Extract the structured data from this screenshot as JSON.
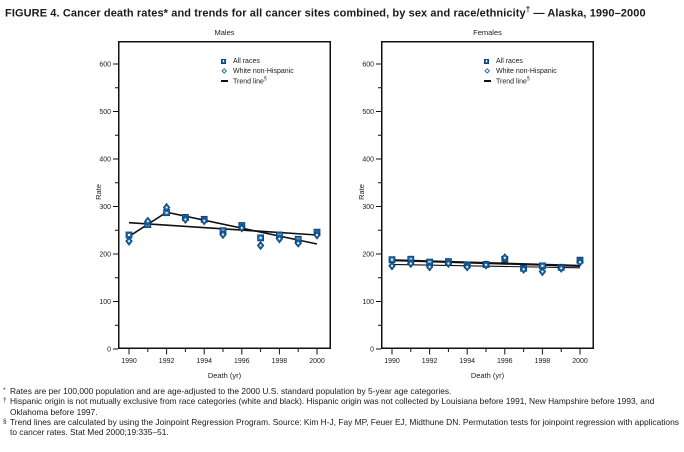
{
  "figure": {
    "title_main": "FIGURE 4. Cancer death rates* and trends for all cancer sites combined, by sex and race/ethnicity",
    "title_sup": "†",
    "title_tail": " — Alaska, 1990–2000"
  },
  "colors": {
    "marker_blue": "#1E6FB0",
    "marker_edge": "#0C3C6E",
    "line_black": "#111111"
  },
  "chart_data": [
    {
      "type": "scatter",
      "title": "Males",
      "xlabel": "Death (yr)",
      "ylabel": "Rate",
      "x": [
        1990,
        1991,
        1992,
        1993,
        1994,
        1995,
        1996,
        1997,
        1998,
        1999,
        2000
      ],
      "ylim": [
        0,
        650
      ],
      "ytick_major_step": 100,
      "ytick_minor_step": 50,
      "xticks_labeled": [
        1990,
        1992,
        1994,
        1996,
        1998,
        2000
      ],
      "grid": false,
      "legend_position": "upper-center",
      "series": [
        {
          "name": "All races",
          "marker": "square",
          "values": [
            240,
            262,
            287,
            277,
            273,
            249,
            260,
            234,
            240,
            231,
            246
          ]
        },
        {
          "name": "White non-Hispanic",
          "marker": "diamond",
          "values": [
            227,
            269,
            298,
            273,
            270,
            241,
            255,
            218,
            232,
            223,
            240
          ]
        }
      ],
      "trend_lines": [
        {
          "name": "All races trend",
          "width": 1.6,
          "points": [
            [
              1990,
              266
            ],
            [
              2000,
              240
            ]
          ]
        },
        {
          "name": "White non-Hispanic trend (joinpoint 1992)",
          "width": 1.6,
          "points": [
            [
              1990,
              237
            ],
            [
              1992,
              288
            ],
            [
              2000,
              221
            ]
          ]
        }
      ],
      "legend": {
        "items": [
          {
            "marker": "square",
            "label": "All races",
            "sup": ""
          },
          {
            "marker": "diamond",
            "label": "White non-Hispanic",
            "sup": ""
          },
          {
            "marker": "dash",
            "label": "Trend line",
            "sup": "§"
          }
        ]
      }
    },
    {
      "type": "scatter",
      "title": "Females",
      "xlabel": "Death (yr)",
      "ylabel": "Rate",
      "x": [
        1990,
        1991,
        1992,
        1993,
        1994,
        1995,
        1996,
        1997,
        1998,
        1999,
        2000
      ],
      "ylim": [
        0,
        650
      ],
      "ytick_major_step": 100,
      "ytick_minor_step": 50,
      "xticks_labeled": [
        1990,
        1992,
        1994,
        1996,
        1998,
        2000
      ],
      "grid": false,
      "legend_position": "upper-center",
      "series": [
        {
          "name": "All races",
          "marker": "square",
          "values": [
            188,
            189,
            183,
            184,
            177,
            178,
            189,
            170,
            175,
            172,
            187
          ]
        },
        {
          "name": "White non-Hispanic",
          "marker": "diamond",
          "values": [
            175,
            180,
            173,
            180,
            173,
            177,
            192,
            168,
            163,
            170,
            183
          ]
        }
      ],
      "trend_lines": [
        {
          "name": "All races trend",
          "width": 2.2,
          "points": [
            [
              1990,
              187
            ],
            [
              2000,
              175
            ]
          ]
        },
        {
          "name": "White non-Hispanic trend",
          "width": 1.1,
          "points": [
            [
              1990,
              178
            ],
            [
              2000,
              171
            ]
          ]
        }
      ],
      "legend": {
        "items": [
          {
            "marker": "square",
            "label": "All races",
            "sup": ""
          },
          {
            "marker": "diamond",
            "label": "White non-Hispanic",
            "sup": ""
          },
          {
            "marker": "dash",
            "label": "Trend line",
            "sup": "§"
          }
        ]
      }
    }
  ],
  "footnotes": [
    {
      "marker": "*",
      "text": "Rates are per 100,000 population and are age-adjusted to the 2000 U.S. standard population by 5-year age categories."
    },
    {
      "marker": "†",
      "text": "Hispanic origin is not mutually exclusive from race categories (white and black). Hispanic origin was not collected by Louisiana before 1991, New Hampshire before 1993, and Oklahoma before 1997."
    },
    {
      "marker": "§",
      "text": "Trend lines are calculated by using the Joinpoint Regression Program. Source: Kim H-J, Fay MP, Feuer EJ, Midthune DN. Permutation tests for joinpoint regression with applications to cancer rates. Stat Med 2000;19:335–51."
    }
  ]
}
